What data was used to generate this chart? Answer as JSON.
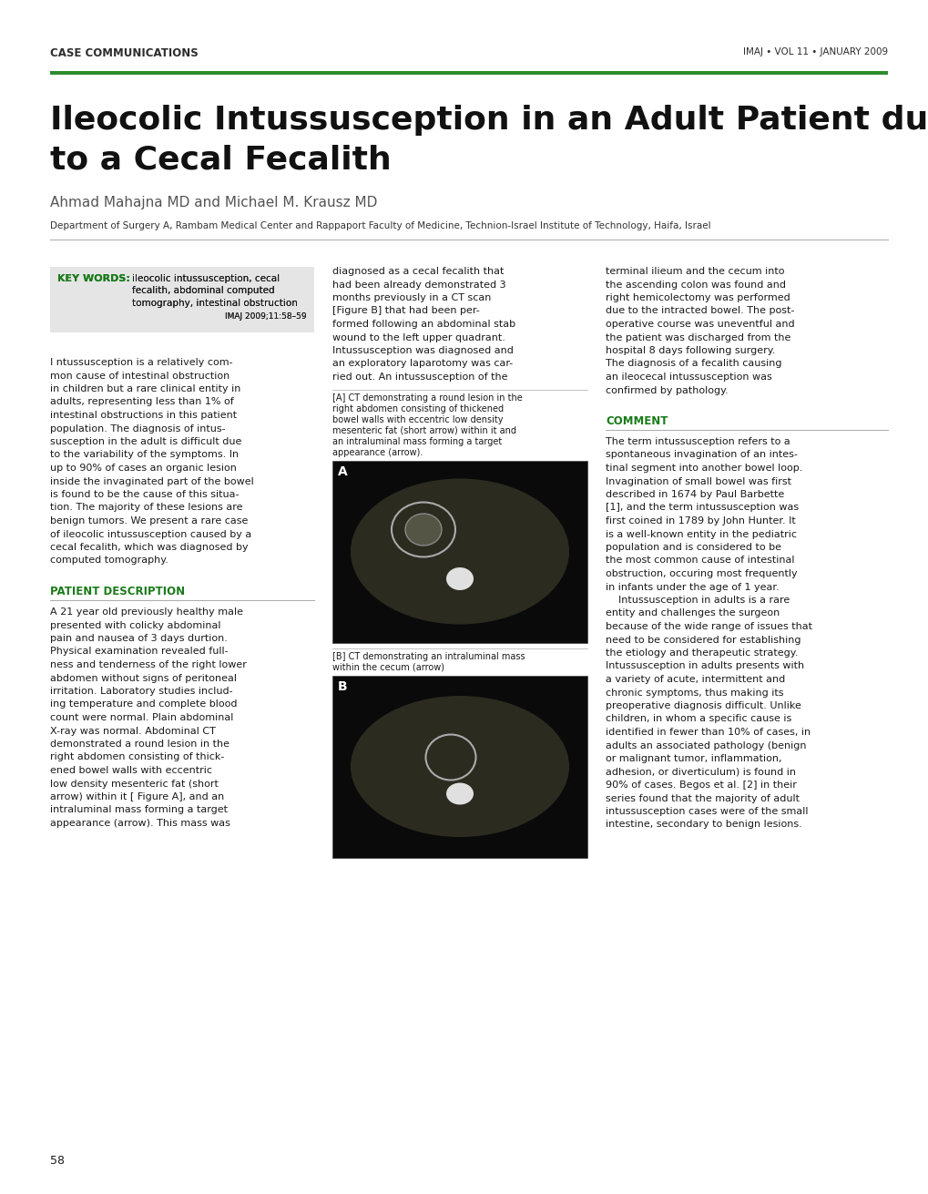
{
  "page_width": 10.2,
  "page_height": 13.11,
  "bg_color": "#ffffff",
  "header_left": "CASE COMMUNICATIONS",
  "header_right": "IMAJ • VOL 11 • JANUARY 2009",
  "header_color": "#2d2d2d",
  "header_font_size": 8.5,
  "green_bar_color": "#2e8b2e",
  "title_line1": "Ileocolic Intussusception in an Adult Patient due",
  "title_line2": "to a Cecal Fecalith",
  "title_font_size": 26,
  "title_color": "#111111",
  "author_line": "Ahmad Mahajna MD and Michael M. Krausz MD",
  "author_font_size": 11,
  "author_color": "#555555",
  "affiliation": "Department of Surgery A, Rambam Medical Center and Rappaport Faculty of Medicine, Technion-Israel Institute of Technology, Haifa, Israel",
  "affiliation_font_size": 7.5,
  "affiliation_color": "#333333",
  "divider_color": "#aaaaaa",
  "keyword_box_color": "#e5e5e5",
  "keyword_label": "KEY WORDS:",
  "keyword_label_color": "#1a7a1a",
  "keyword_text_line1": "ileocolic intussusception, cecal",
  "keyword_text_line2": "fecalith, abdominal computed",
  "keyword_text_line3": "tomography, intestinal obstruction",
  "keyword_citation": "IMAJ 2009;11:58–59",
  "keyword_font_size": 8,
  "section_patient": "PATIENT DESCRIPTION",
  "section_comment": "COMMENT",
  "section_color": "#1a7a1a",
  "section_font_size": 8.5,
  "col1_intro_lines": [
    "I ntussusception is a relatively com-",
    "mon cause of intestinal obstruction",
    "in children but a rare clinical entity in",
    "adults, representing less than 1% of",
    "intestinal obstructions in this patient",
    "population. The diagnosis of intus-",
    "susception in the adult is difficult due",
    "to the variability of the symptoms. In",
    "up to 90% of cases an organic lesion",
    "inside the invaginated part of the bowel",
    "is found to be the cause of this situa-",
    "tion. The majority of these lesions are",
    "benign tumors. We present a rare case",
    "of ileocolic intussusception caused by a",
    "cecal fecalith, which was diagnosed by",
    "computed tomography."
  ],
  "col1_patient_lines": [
    "A 21 year old previously healthy male",
    "presented with colicky abdominal",
    "pain and nausea of 3 days durtion.",
    "Physical examination revealed full-",
    "ness and tenderness of the right lower",
    "abdomen without signs of peritoneal",
    "irritation. Laboratory studies includ-",
    "ing temperature and complete blood",
    "count were normal. Plain abdominal",
    "X-ray was normal. Abdominal CT",
    "demonstrated a round lesion in the",
    "right abdomen consisting of thick-",
    "ened bowel walls with eccentric",
    "low density mesenteric fat (short",
    "arrow) within it [ Figure A], and an",
    "intraluminal mass forming a target",
    "appearance (arrow). This mass was"
  ],
  "col2_top_lines": [
    "diagnosed as a cecal fecalith that",
    "had been already demonstrated 3",
    "months previously in a CT scan",
    "[Figure B] that had been per-",
    "formed following an abdominal stab",
    "wound to the left upper quadrant.",
    "Intussusception was diagnosed and",
    "an exploratory laparotomy was car-",
    "ried out. An intussusception of the"
  ],
  "fig_a_caption_lines": [
    "[A] CT demonstrating a round lesion in the",
    "right abdomen consisting of thickened",
    "bowel walls with eccentric low density",
    "mesenteric fat (short arrow) within it and",
    "an intraluminal mass forming a target",
    "appearance (arrow)."
  ],
  "fig_b_caption_lines": [
    "[B] CT demonstrating an intraluminal mass",
    "within the cecum (arrow)"
  ],
  "col3_top_lines": [
    "terminal ilieum and the cecum into",
    "the ascending colon was found and",
    "right hemicolectomy was performed",
    "due to the intracted bowel. The post-",
    "operative course was uneventful and",
    "the patient was discharged from the",
    "hospital 8 days following surgery.",
    "The diagnosis of a fecalith causing",
    "an ileocecal intussusception was",
    "confirmed by pathology."
  ],
  "col3_comment_lines": [
    "The term intussusception refers to a",
    "spontaneous invagination of an intes-",
    "tinal segment into another bowel loop.",
    "Invagination of small bowel was first",
    "described in 1674 by Paul Barbette",
    "[1], and the term intussusception was",
    "first coined in 1789 by John Hunter. It",
    "is a well-known entity in the pediatric",
    "population and is considered to be",
    "the most common cause of intestinal",
    "obstruction, occuring most frequently",
    "in infants under the age of 1 year.",
    "    Intussusception in adults is a rare",
    "entity and challenges the surgeon",
    "because of the wide range of issues that",
    "need to be considered for establishing",
    "the etiology and therapeutic strategy.",
    "Intussusception in adults presents with",
    "a variety of acute, intermittent and",
    "chronic symptoms, thus making its",
    "preoperative diagnosis difficult. Unlike",
    "children, in whom a specific cause is",
    "identified in fewer than 10% of cases, in",
    "adults an associated pathology (benign",
    "or malignant tumor, inflammation,",
    "adhesion, or diverticulum) is found in",
    "90% of cases. Begos et al. [2] in their",
    "series found that the majority of adult",
    "intussusception cases were of the small",
    "intestine, secondary to benign lesions."
  ],
  "page_number": "58",
  "body_font_size": 8.0,
  "body_color": "#1a1a1a",
  "caption_font_size": 7.0
}
